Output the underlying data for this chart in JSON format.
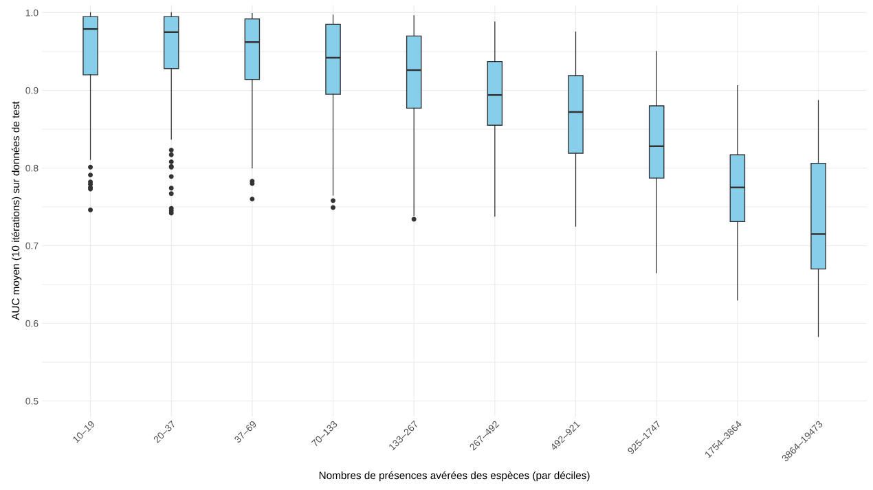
{
  "chart_data": {
    "type": "box",
    "xlabel": "Nombres de présences avérées des espèces (par déciles)",
    "ylabel": "AUC moyen (10 itérations) sur données de test",
    "categories": [
      "10–19",
      "20–37",
      "37–69",
      "70–133",
      "133–267",
      "267–492",
      "492–921",
      "925–1747",
      "1754–3864",
      "3864–19473"
    ],
    "color": "#87ceeb",
    "boxes": [
      {
        "low": 0.811,
        "q1": 0.92,
        "median": 0.979,
        "q3": 0.995,
        "high": 1.0,
        "outliers": [
          0.801,
          0.791,
          0.782,
          0.779,
          0.775,
          0.773,
          0.746
        ]
      },
      {
        "low": 0.837,
        "q1": 0.928,
        "median": 0.975,
        "q3": 0.995,
        "high": 1.0,
        "outliers": [
          0.823,
          0.817,
          0.808,
          0.802,
          0.801,
          0.789,
          0.774,
          0.767,
          0.748,
          0.745,
          0.742
        ]
      },
      {
        "low": 0.8,
        "q1": 0.914,
        "median": 0.962,
        "q3": 0.992,
        "high": 0.999,
        "outliers": [
          0.783,
          0.78,
          0.76
        ]
      },
      {
        "low": 0.765,
        "q1": 0.895,
        "median": 0.942,
        "q3": 0.985,
        "high": 0.997,
        "outliers": [
          0.758,
          0.749
        ]
      },
      {
        "low": 0.739,
        "q1": 0.877,
        "median": 0.926,
        "q3": 0.97,
        "high": 0.996,
        "outliers": [
          0.734
        ]
      },
      {
        "low": 0.738,
        "q1": 0.855,
        "median": 0.894,
        "q3": 0.937,
        "high": 0.988
      },
      {
        "low": 0.725,
        "q1": 0.819,
        "median": 0.872,
        "q3": 0.919,
        "high": 0.975
      },
      {
        "low": 0.665,
        "q1": 0.787,
        "median": 0.828,
        "q3": 0.88,
        "high": 0.95
      },
      {
        "low": 0.63,
        "q1": 0.731,
        "median": 0.775,
        "q3": 0.817,
        "high": 0.906
      },
      {
        "low": 0.583,
        "q1": 0.67,
        "median": 0.715,
        "q3": 0.806,
        "high": 0.887
      }
    ],
    "ylim": [
      0.48,
      1.01
    ],
    "yticks": [
      0.5,
      {
        "value": 0.55,
        "label": null
      },
      0.6,
      {
        "value": 0.65,
        "label": null
      },
      0.7,
      {
        "value": 0.75,
        "label": null
      },
      0.8,
      {
        "value": 0.85,
        "label": null
      },
      0.9,
      {
        "value": 0.95,
        "label": null
      },
      {
        "value": 1.0,
        "label": "1.0"
      }
    ],
    "grid": true
  }
}
